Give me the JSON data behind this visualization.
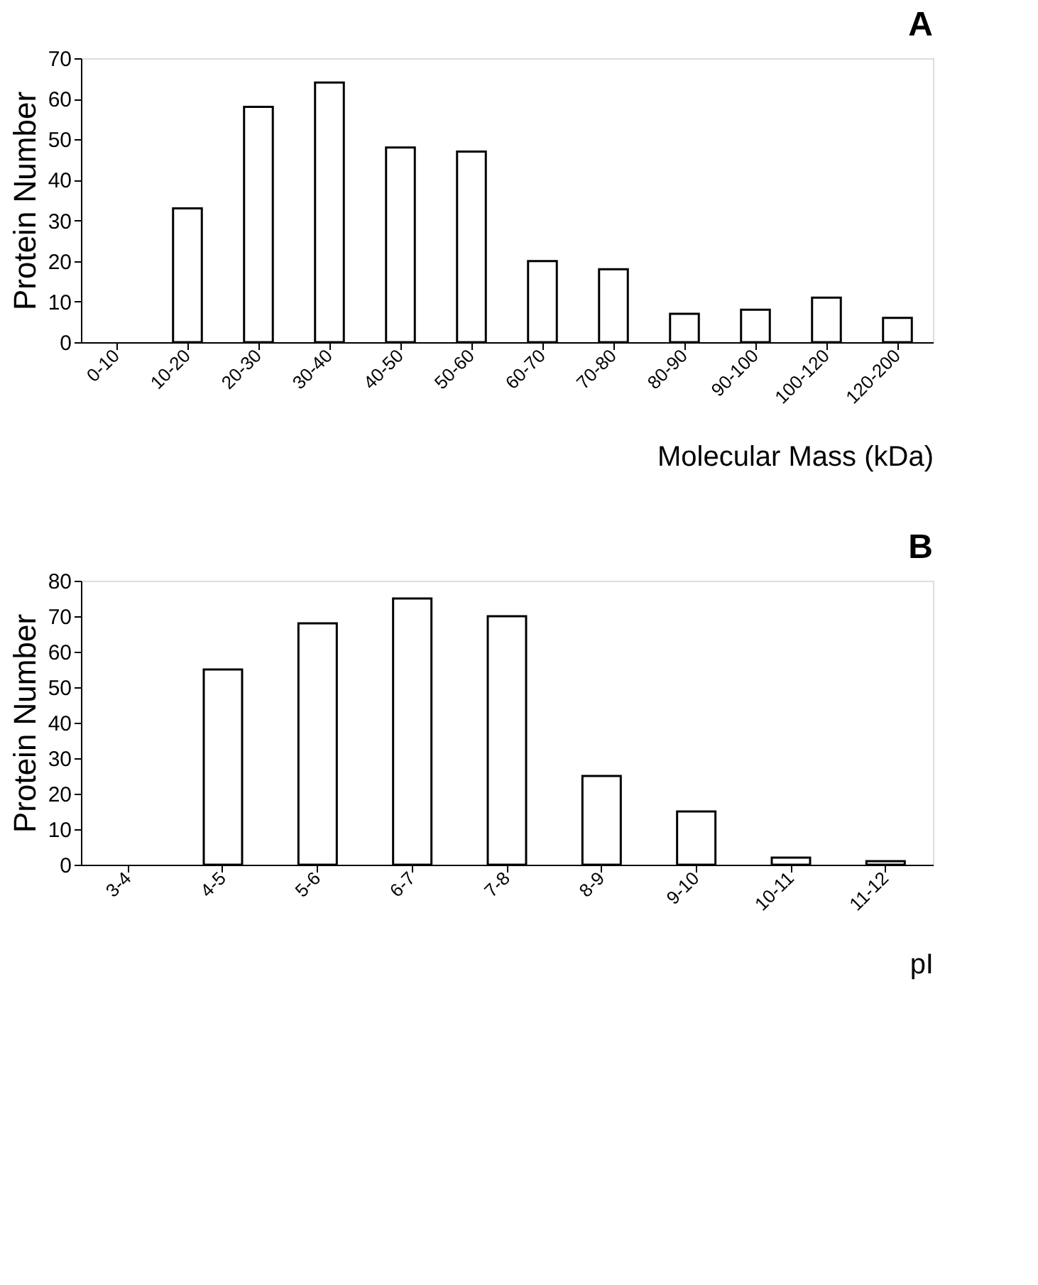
{
  "chart_data": [
    {
      "type": "bar",
      "title": "A",
      "xlabel": "Molecular Mass (kDa)",
      "ylabel": "Protein Number",
      "categories": [
        "0-10",
        "10-20",
        "20-30",
        "30-40",
        "40-50",
        "50-60",
        "60-70",
        "70-80",
        "80-90",
        "90-100",
        "100-120",
        "120-200"
      ],
      "values": [
        0,
        33,
        58,
        64,
        48,
        47,
        20,
        18,
        7,
        8,
        11,
        6
      ],
      "color": "#ffffff",
      "ylim": [
        0,
        70
      ],
      "yticks": [
        0,
        10,
        20,
        30,
        40,
        50,
        60,
        70
      ],
      "grid": false
    },
    {
      "type": "bar",
      "title": "B",
      "xlabel": "pI",
      "ylabel": "Protein Number",
      "categories": [
        "3-4",
        "4-5",
        "5-6",
        "6-7",
        "7-8",
        "8-9",
        "9-10",
        "10-11",
        "11-12"
      ],
      "values": [
        0,
        55,
        68,
        75,
        70,
        25,
        15,
        2,
        1
      ],
      "color": "#ffffff",
      "ylim": [
        0,
        80
      ],
      "yticks": [
        0,
        10,
        20,
        30,
        40,
        50,
        60,
        70,
        80
      ],
      "grid": false
    }
  ]
}
